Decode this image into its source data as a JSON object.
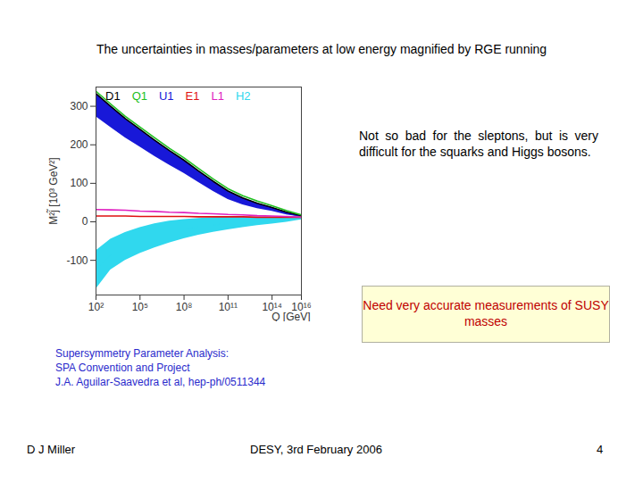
{
  "slide": {
    "title": "The uncertainties in masses/parameters at low energy magnified by RGE running",
    "comment": "Not so bad for the sleptons, but is very difficult for the squarks and Higgs bosons.",
    "box": "Need very accurate measurements of SUSY masses",
    "reference": [
      "Supersymmetry Parameter Analysis:",
      "SPA Convention and Project",
      "J.A. Aguilar-Saavedra et al, hep-ph/0511344"
    ],
    "footer": {
      "author": "D J Miller",
      "event": "DESY, 3rd February 2006",
      "page": "4"
    }
  },
  "chart_data": {
    "type": "line",
    "log": "x",
    "x_label": "Q [GeV]",
    "y_label": "M²j̃ [10³ GeV²]",
    "xlim": [
      100.0,
      1e+16
    ],
    "ylim": [
      -190,
      350
    ],
    "xticks": [
      {
        "value": 100.0,
        "label": "10²"
      },
      {
        "value": 100000.0,
        "label": "10⁵"
      },
      {
        "value": 100000000.0,
        "label": "10⁸"
      },
      {
        "value": 100000000000.0,
        "label": "10¹¹"
      },
      {
        "value": 100000000000000.0,
        "label": "10¹⁴"
      },
      {
        "value": 1e+16,
        "label": "10¹⁶"
      }
    ],
    "yticks": [
      -100,
      0,
      100,
      200,
      300
    ],
    "x": [
      100.0,
      1000.0,
      10000.0,
      100000.0,
      1000000.0,
      10000000.0,
      100000000.0,
      1000000000.0,
      10000000000.0,
      100000000000.0,
      1000000000000.0,
      10000000000000.0,
      100000000000000.0,
      1000000000000000.0,
      1e+16
    ],
    "series": [
      {
        "name": "D1",
        "color": "#000000",
        "type": "line",
        "values": [
          333,
          300,
          268,
          240,
          212,
          185,
          160,
          132,
          105,
          80,
          62,
          48,
          37,
          25,
          16
        ]
      },
      {
        "name": "Q1",
        "color": "#20c020",
        "type": "line",
        "values": [
          339,
          306,
          274,
          246,
          218,
          191,
          166,
          138,
          111,
          86,
          68,
          54,
          42,
          29,
          18
        ]
      },
      {
        "name": "U1",
        "color": "#1818d8",
        "type": "area",
        "values": [
          303,
          273,
          243,
          217,
          191,
          166,
          143,
          117,
          92,
          69,
          53,
          41,
          32,
          22,
          14
        ],
        "lower": [
          273,
          245,
          218,
          194,
          170,
          147,
          126,
          102,
          79,
          58,
          44,
          34,
          27,
          18,
          12
        ],
        "upper": [
          333,
          300,
          268,
          240,
          212,
          185,
          160,
          132,
          105,
          80,
          62,
          48,
          37,
          25,
          16
        ]
      },
      {
        "name": "E1",
        "color": "#e01010",
        "type": "line",
        "values": [
          15,
          15,
          15,
          14,
          14,
          14,
          14,
          13,
          13,
          13,
          13,
          12,
          12,
          12,
          12
        ]
      },
      {
        "name": "L1",
        "color": "#e020c0",
        "type": "line",
        "values": [
          32,
          31,
          30,
          28,
          27,
          25,
          24,
          22,
          21,
          19,
          18,
          16,
          15,
          14,
          12
        ]
      },
      {
        "name": "H2",
        "color": "#30d8ee",
        "type": "area",
        "values": [
          -125,
          -85,
          -64,
          -49,
          -37,
          -27,
          -19,
          -13,
          -8,
          -5,
          -2,
          1,
          3,
          6,
          9
        ],
        "lower": [
          -175,
          -125,
          -100,
          -82,
          -68,
          -55,
          -44,
          -35,
          -27,
          -21,
          -15,
          -10,
          -6,
          -1,
          5
        ],
        "upper": [
          -75,
          -45,
          -28,
          -15,
          -5,
          2,
          6,
          9,
          11,
          12,
          12,
          12,
          12,
          12,
          12
        ]
      }
    ]
  }
}
